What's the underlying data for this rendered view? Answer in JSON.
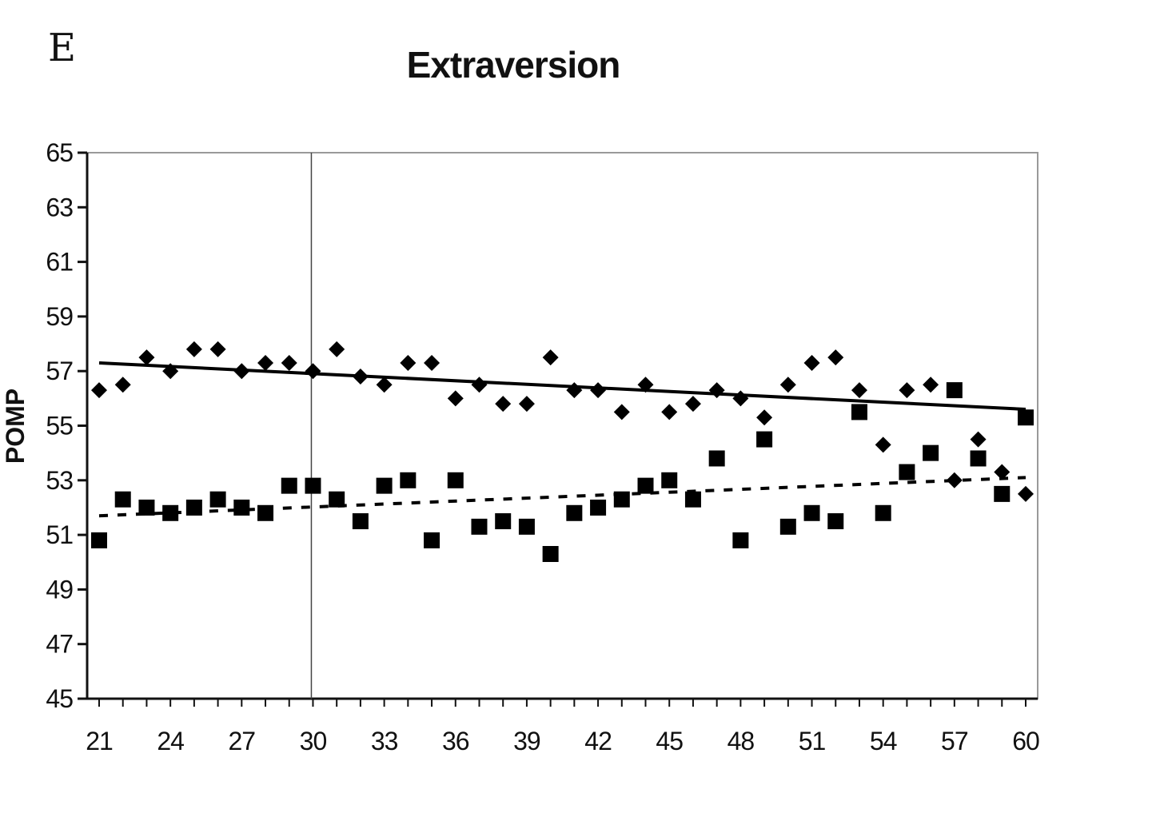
{
  "panel_label": "E",
  "chart_data": {
    "type": "scatter",
    "title": "Extraversion",
    "xlabel": "",
    "ylabel": "POMP",
    "xlim": [
      20.5,
      60.5
    ],
    "ylim": [
      45,
      65
    ],
    "x_ticks": [
      21,
      24,
      27,
      30,
      33,
      36,
      39,
      42,
      45,
      48,
      51,
      54,
      57,
      60
    ],
    "y_ticks": [
      45,
      47,
      49,
      51,
      53,
      55,
      57,
      59,
      61,
      63,
      65
    ],
    "reference_line_x": 30,
    "grid": false,
    "legend": "none",
    "series": [
      {
        "marker": "diamond",
        "color": "#000000",
        "x": [
          21,
          22,
          23,
          24,
          25,
          26,
          27,
          28,
          29,
          30,
          31,
          32,
          33,
          34,
          35,
          36,
          37,
          38,
          39,
          40,
          41,
          42,
          43,
          44,
          45,
          46,
          47,
          48,
          49,
          50,
          51,
          52,
          53,
          54,
          55,
          56,
          57,
          58,
          59,
          60
        ],
        "y": [
          56.3,
          56.5,
          57.5,
          57.0,
          57.8,
          57.8,
          57.0,
          57.3,
          57.3,
          57.0,
          57.8,
          56.8,
          56.5,
          57.3,
          57.3,
          56.0,
          56.5,
          55.8,
          55.8,
          57.5,
          56.3,
          56.3,
          55.5,
          56.5,
          55.5,
          55.8,
          56.3,
          56.0,
          55.3,
          56.5,
          57.3,
          57.5,
          56.3,
          54.3,
          56.3,
          56.5,
          53.0,
          54.5,
          53.3,
          52.5
        ],
        "trendline": {
          "style": "solid",
          "from": [
            21,
            57.3
          ],
          "to": [
            60,
            55.6
          ]
        }
      },
      {
        "marker": "square",
        "color": "#000000",
        "x": [
          21,
          22,
          23,
          24,
          25,
          26,
          27,
          28,
          29,
          30,
          31,
          32,
          33,
          34,
          35,
          36,
          37,
          38,
          39,
          40,
          41,
          42,
          43,
          44,
          45,
          46,
          47,
          48,
          49,
          50,
          51,
          52,
          53,
          54,
          55,
          56,
          57,
          58,
          59,
          60
        ],
        "y": [
          50.8,
          52.3,
          52.0,
          51.8,
          52.0,
          52.3,
          52.0,
          51.8,
          52.8,
          52.8,
          52.3,
          51.5,
          52.8,
          53.0,
          50.8,
          53.0,
          51.3,
          51.5,
          51.3,
          50.3,
          51.8,
          52.0,
          52.3,
          52.8,
          53.0,
          52.3,
          53.8,
          50.8,
          54.5,
          51.3,
          51.8,
          51.5,
          55.5,
          51.8,
          53.3,
          54.0,
          56.3,
          53.8,
          52.5,
          55.3
        ],
        "trendline": {
          "style": "dashed",
          "from": [
            21,
            51.7
          ],
          "to": [
            60,
            53.1
          ]
        }
      }
    ]
  }
}
